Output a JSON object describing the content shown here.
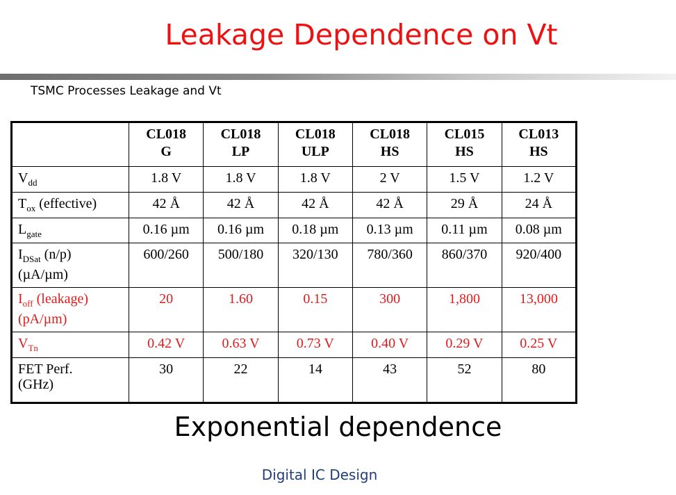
{
  "slide": {
    "title": "Leakage Dependence on Vt",
    "subtitle": "TSMC Processes Leakage and Vt",
    "caption": "Exponential dependence",
    "footer": "Digital IC Design"
  },
  "table": {
    "columns": [
      {
        "line1": "CL018",
        "line2": "G"
      },
      {
        "line1": "CL018",
        "line2": "LP"
      },
      {
        "line1": "CL018",
        "line2": "ULP"
      },
      {
        "line1": "CL018",
        "line2": "HS"
      },
      {
        "line1": "CL015",
        "line2": "HS"
      },
      {
        "line1": "CL013",
        "line2": "HS"
      }
    ],
    "rows": [
      {
        "label": "V",
        "sub": "dd",
        "suffix": "",
        "values": [
          "1.8 V",
          "1.8 V",
          "1.8 V",
          "2 V",
          "1.5 V",
          "1.2 V"
        ]
      },
      {
        "label": "T",
        "sub": "ox",
        "suffix": " (effective)",
        "values": [
          "42 Å",
          "42 Å",
          "42 Å",
          "42 Å",
          "29 Å",
          "24 Å"
        ]
      },
      {
        "label": "L",
        "sub": "gate",
        "suffix": "",
        "values": [
          "0.16 µm",
          "0.16 µm",
          "0.18 µm",
          "0.13 µm",
          "0.11 µm",
          "0.08 µm"
        ]
      },
      {
        "label": "I",
        "sub": "DSat",
        "suffix": " (n/p)",
        "line2": "(µA/µm)",
        "values": [
          "600/260",
          "500/180",
          "320/130",
          "780/360",
          "860/370",
          "920/400"
        ]
      },
      {
        "label": "I",
        "sub": "off",
        "suffix": " (leakage)",
        "line2": "(pA/µm)",
        "values": [
          "20",
          "1.60",
          "0.15",
          "300",
          "1,800",
          "13,000"
        ]
      },
      {
        "label": "V",
        "sub": "Tn",
        "suffix": "",
        "values": [
          "0.42 V",
          "0.63 V",
          "0.73 V",
          "0.40 V",
          "0.29 V",
          "0.25 V"
        ]
      },
      {
        "label": "FET Perf.",
        "sub": "",
        "suffix": "",
        "line2": "(GHz)",
        "values": [
          "30",
          "22",
          "14",
          "43",
          "52",
          "80"
        ]
      }
    ],
    "highlight_color": "#e01b1b"
  }
}
